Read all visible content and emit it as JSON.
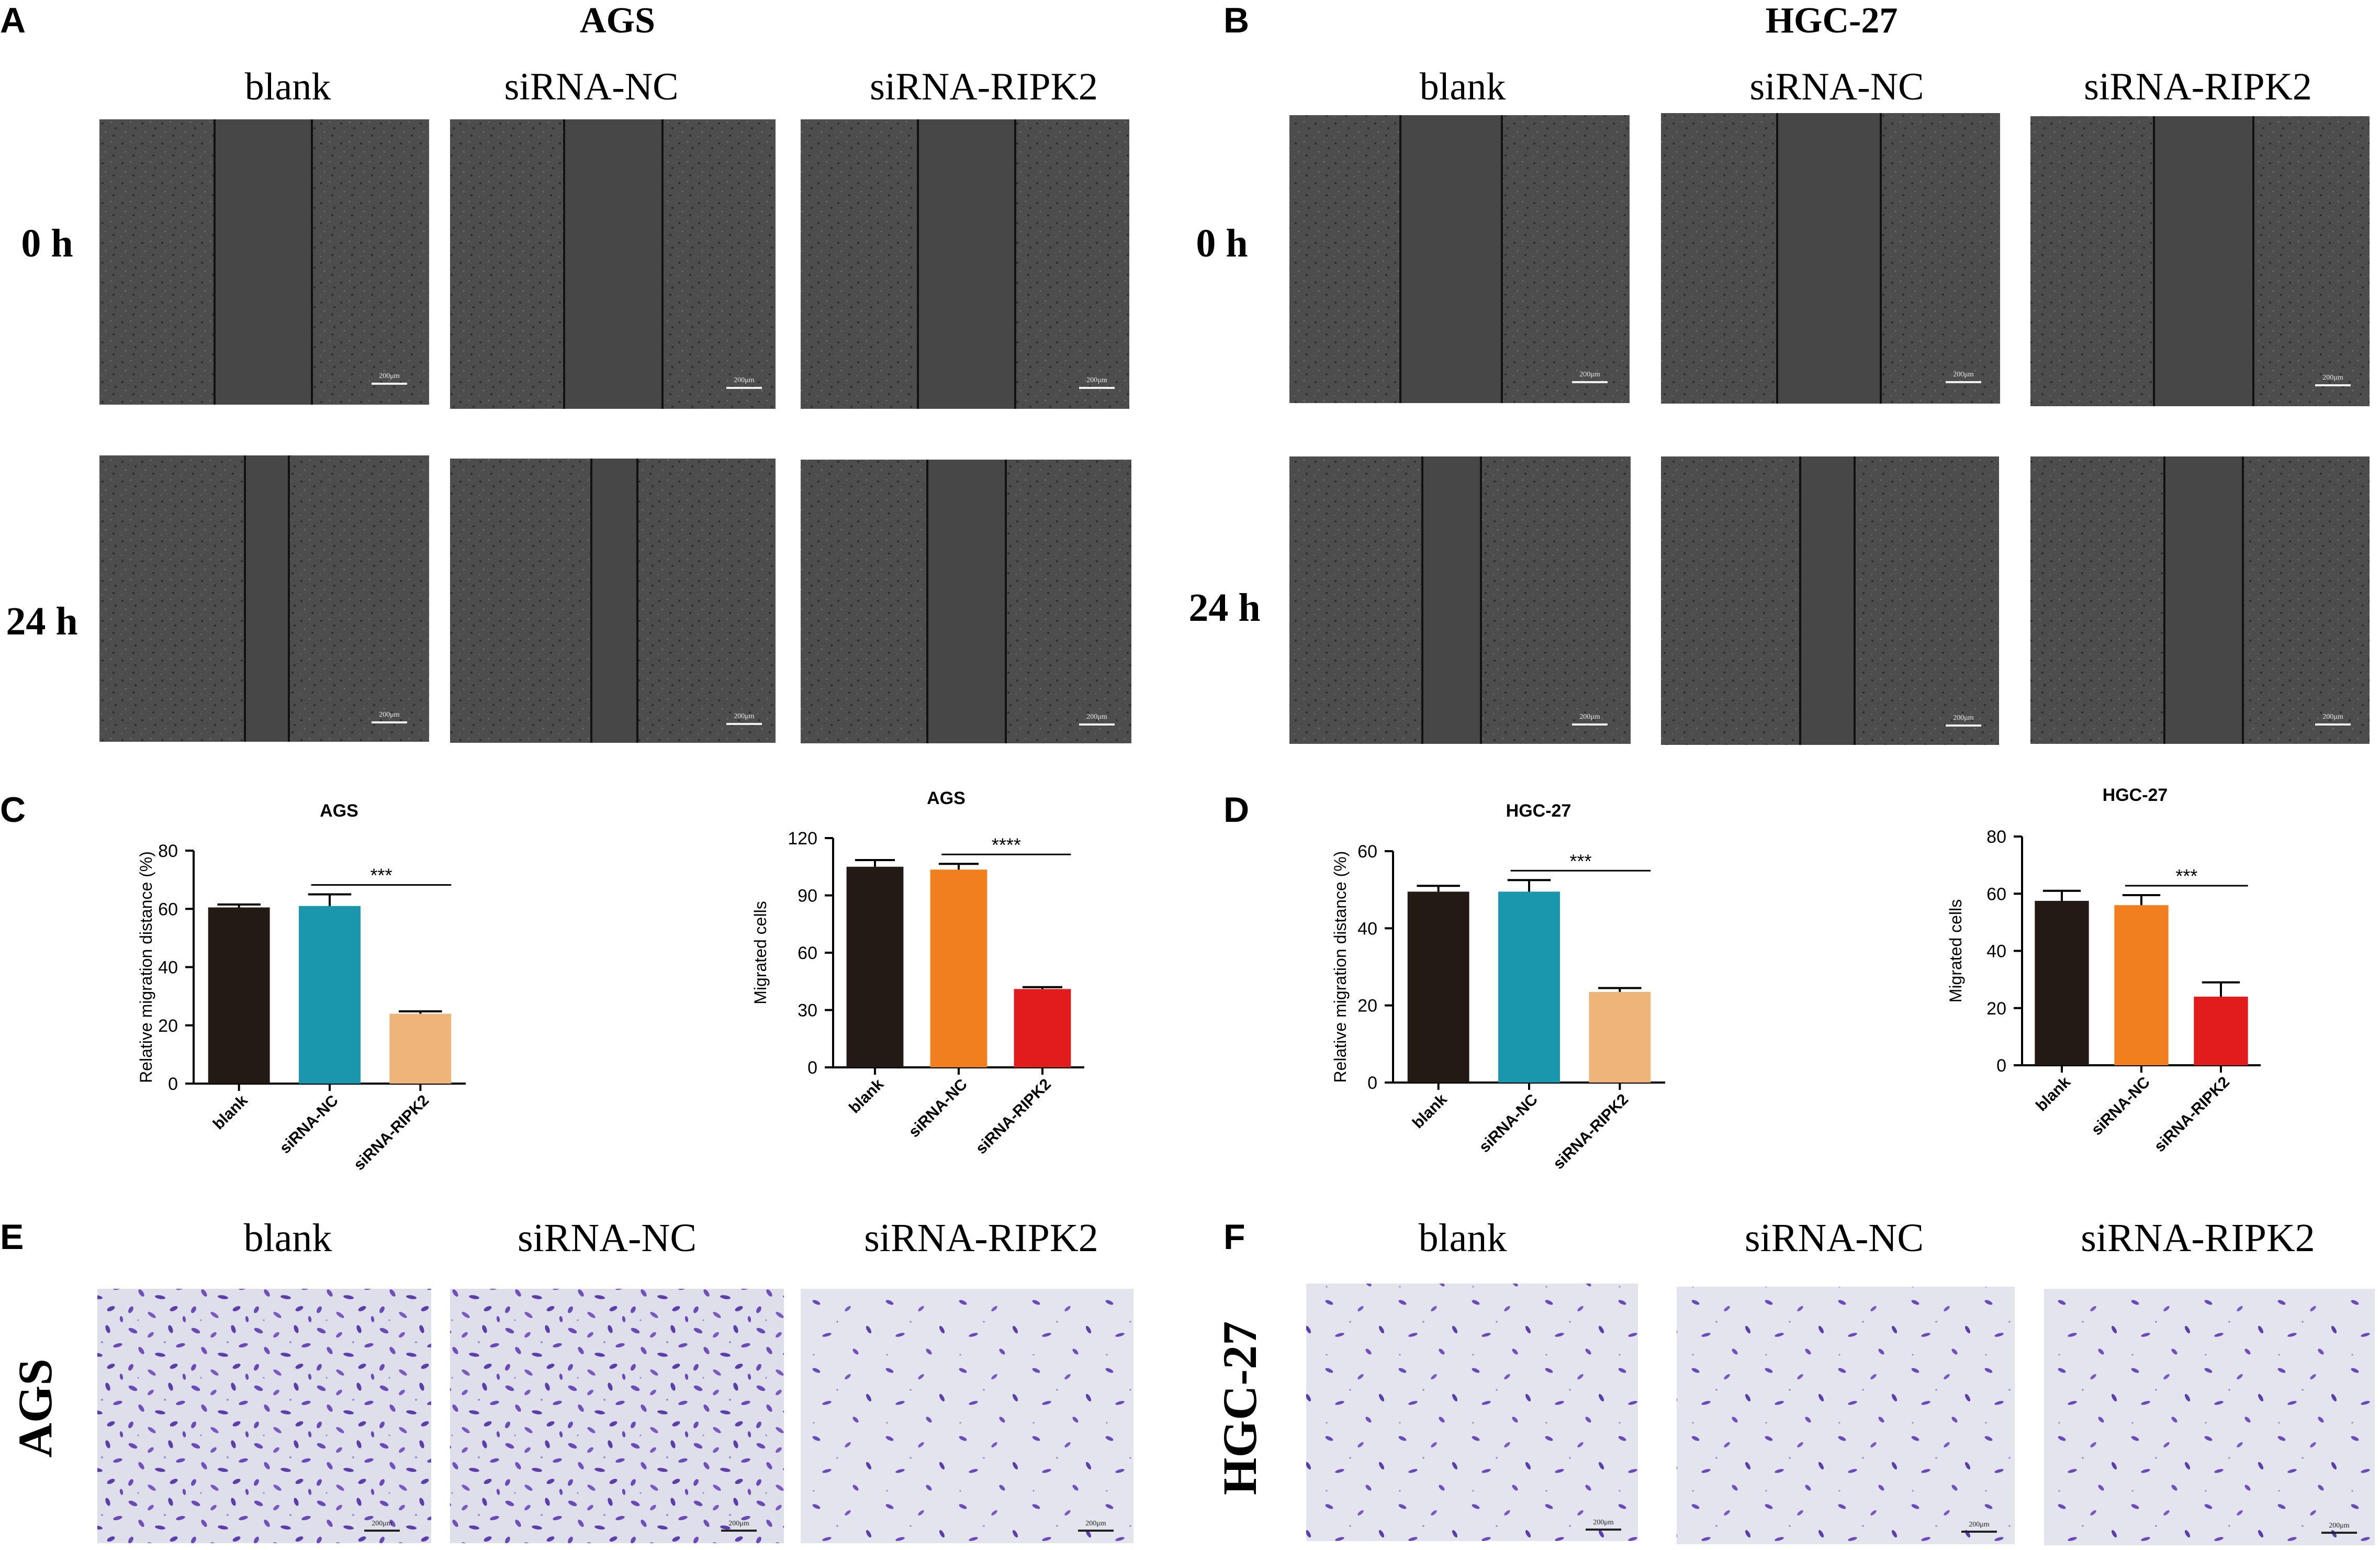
{
  "panel_letters": {
    "A": "A",
    "B": "B",
    "C": "C",
    "D": "D",
    "E": "E",
    "F": "F"
  },
  "scratch": {
    "AGS": {
      "title": "AGS",
      "columns": [
        "blank",
        "siRNA-NC",
        "siRNA-RIPK2"
      ],
      "rows": [
        "0 h",
        "24 h"
      ],
      "scale_label": "200μm"
    },
    "HGC27": {
      "title": "HGC-27",
      "columns": [
        "blank",
        "siRNA-NC",
        "siRNA-RIPK2"
      ],
      "rows": [
        "0 h",
        "24 h"
      ],
      "scale_label": "200μm"
    }
  },
  "transwell": {
    "AGS": {
      "row_label": "AGS",
      "columns": [
        "blank",
        "siRNA-NC",
        "siRNA-RIPK2"
      ],
      "scale_label": "200μm"
    },
    "HGC27": {
      "row_label": "HGC-27",
      "columns": [
        "blank",
        "siRNA-NC",
        "siRNA-RIPK2"
      ],
      "scale_label": "200μm"
    }
  },
  "colors": {
    "blank": "#231a16",
    "siRNA_NC_teal": "#1a96ad",
    "siRNA_RIPK2_tan": "#efb47a",
    "siRNA_NC_orange": "#f27f1d",
    "siRNA_RIPK2_red": "#e21c1c",
    "scratch_bg": "#4a4a4a",
    "transwell_bg": "#dcdcea",
    "crystal_violet": "#6a4ab8"
  },
  "chart_data": [
    {
      "type": "bar",
      "panel": "C",
      "title": "AGS",
      "ylabel": "Relative migration distance (%)",
      "categories": [
        "blank",
        "siRNA-NC",
        "siRNA-RIPK2"
      ],
      "values": [
        60.5,
        61,
        24
      ],
      "errors": [
        1,
        4,
        0.8
      ],
      "ylim": [
        0,
        80
      ],
      "yticks": [
        0,
        20,
        40,
        60,
        80
      ],
      "significance": {
        "label": "***",
        "from": 1,
        "to": 2
      },
      "bar_colors": [
        "#231a16",
        "#1a96ad",
        "#efb47a"
      ]
    },
    {
      "type": "bar",
      "panel": "C",
      "title": "AGS",
      "ylabel": "Migrated cells",
      "categories": [
        "blank",
        "siRNA-NC",
        "siRNA-RIPK2"
      ],
      "values": [
        105,
        103.5,
        41
      ],
      "errors": [
        3.5,
        3,
        1
      ],
      "ylim": [
        0,
        120
      ],
      "yticks": [
        0,
        30,
        60,
        90,
        120
      ],
      "significance": {
        "label": "****",
        "from": 1,
        "to": 2
      },
      "bar_colors": [
        "#231a16",
        "#f27f1d",
        "#e21c1c"
      ]
    },
    {
      "type": "bar",
      "panel": "D",
      "title": "HGC-27",
      "ylabel": "Relative migration distance (%)",
      "categories": [
        "blank",
        "siRNA-NC",
        "siRNA-RIPK2"
      ],
      "values": [
        49.5,
        49.5,
        23.5
      ],
      "errors": [
        1.5,
        3,
        1
      ],
      "ylim": [
        0,
        60
      ],
      "yticks": [
        0,
        20,
        40,
        60
      ],
      "significance": {
        "label": "***",
        "from": 1,
        "to": 2
      },
      "bar_colors": [
        "#231a16",
        "#1a96ad",
        "#efb47a"
      ]
    },
    {
      "type": "bar",
      "panel": "D",
      "title": "HGC-27",
      "ylabel": "Migrated cells",
      "categories": [
        "blank",
        "siRNA-NC",
        "siRNA-RIPK2"
      ],
      "values": [
        57.5,
        56,
        24
      ],
      "errors": [
        3.5,
        3.5,
        5
      ],
      "ylim": [
        0,
        80
      ],
      "yticks": [
        0,
        20,
        40,
        60,
        80
      ],
      "significance": {
        "label": "***",
        "from": 1,
        "to": 2
      },
      "bar_colors": [
        "#231a16",
        "#f27f1d",
        "#e21c1c"
      ]
    }
  ]
}
